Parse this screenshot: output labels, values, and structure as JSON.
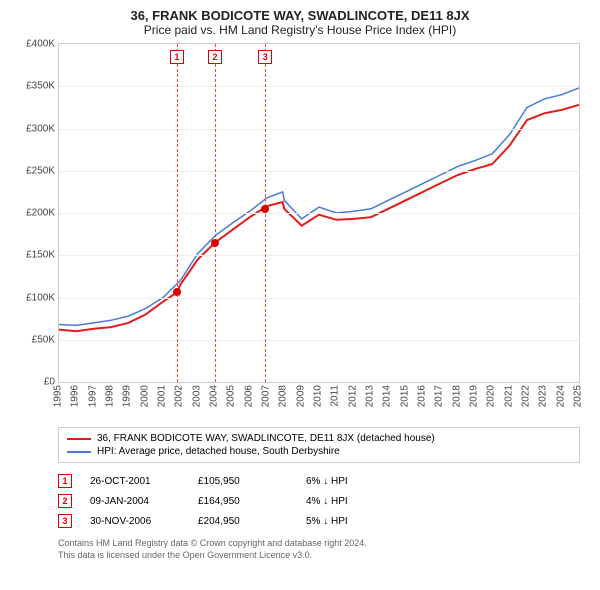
{
  "chart": {
    "type": "line",
    "title": "36, FRANK BODICOTE WAY, SWADLINCOTE, DE11 8JX",
    "subtitle": "Price paid vs. HM Land Registry's House Price Index (HPI)",
    "background_color": "#ffffff",
    "grid_color": "#eeeeee",
    "axis_color": "#cccccc",
    "y": {
      "label_prefix": "£",
      "label_suffix": "K",
      "min": 0,
      "max": 400,
      "step": 50,
      "ticks": [
        "£0",
        "£50K",
        "£100K",
        "£150K",
        "£200K",
        "£250K",
        "£300K",
        "£350K",
        "£400K"
      ]
    },
    "x": {
      "min": 1995,
      "max": 2025,
      "ticks": [
        "1995",
        "1996",
        "1997",
        "1998",
        "1999",
        "2000",
        "2001",
        "2002",
        "2003",
        "2004",
        "2005",
        "2006",
        "2007",
        "2008",
        "2009",
        "2010",
        "2011",
        "2012",
        "2013",
        "2014",
        "2015",
        "2016",
        "2017",
        "2018",
        "2019",
        "2020",
        "2021",
        "2022",
        "2023",
        "2024",
        "2025"
      ]
    },
    "series": [
      {
        "name": "property",
        "label": "36, FRANK BODICOTE WAY, SWADLINCOTE, DE11 8JX (detached house)",
        "color": "#e21b1b",
        "line_width": 2,
        "data": [
          [
            1995,
            62
          ],
          [
            1996,
            60
          ],
          [
            1997,
            63
          ],
          [
            1998,
            65
          ],
          [
            1999,
            70
          ],
          [
            2000,
            80
          ],
          [
            2001,
            95
          ],
          [
            2001.8,
            106
          ],
          [
            2002,
            115
          ],
          [
            2003,
            145
          ],
          [
            2004,
            165
          ],
          [
            2005,
            180
          ],
          [
            2006,
            195
          ],
          [
            2007,
            208
          ],
          [
            2007.9,
            213
          ],
          [
            2008,
            205
          ],
          [
            2009,
            185
          ],
          [
            2010,
            198
          ],
          [
            2011,
            192
          ],
          [
            2012,
            193
          ],
          [
            2013,
            195
          ],
          [
            2014,
            205
          ],
          [
            2015,
            215
          ],
          [
            2016,
            225
          ],
          [
            2017,
            235
          ],
          [
            2018,
            245
          ],
          [
            2019,
            252
          ],
          [
            2020,
            258
          ],
          [
            2021,
            280
          ],
          [
            2022,
            310
          ],
          [
            2023,
            318
          ],
          [
            2024,
            322
          ],
          [
            2025,
            328
          ]
        ]
      },
      {
        "name": "hpi",
        "label": "HPI: Average price, detached house, South Derbyshire",
        "color": "#4a7bd0",
        "line_width": 1.5,
        "data": [
          [
            1995,
            68
          ],
          [
            1996,
            67
          ],
          [
            1997,
            70
          ],
          [
            1998,
            73
          ],
          [
            1999,
            78
          ],
          [
            2000,
            87
          ],
          [
            2001,
            100
          ],
          [
            2002,
            120
          ],
          [
            2003,
            152
          ],
          [
            2004,
            173
          ],
          [
            2005,
            188
          ],
          [
            2006,
            202
          ],
          [
            2007,
            218
          ],
          [
            2007.9,
            225
          ],
          [
            2008,
            215
          ],
          [
            2009,
            193
          ],
          [
            2010,
            207
          ],
          [
            2011,
            200
          ],
          [
            2012,
            202
          ],
          [
            2013,
            205
          ],
          [
            2014,
            215
          ],
          [
            2015,
            225
          ],
          [
            2016,
            235
          ],
          [
            2017,
            245
          ],
          [
            2018,
            255
          ],
          [
            2019,
            262
          ],
          [
            2020,
            270
          ],
          [
            2021,
            293
          ],
          [
            2022,
            325
          ],
          [
            2023,
            335
          ],
          [
            2024,
            340
          ],
          [
            2025,
            348
          ]
        ]
      }
    ],
    "markers": [
      {
        "index": "1",
        "x": 2001.8,
        "y": 106
      },
      {
        "index": "2",
        "x": 2004.0,
        "y": 165
      },
      {
        "index": "3",
        "x": 2006.9,
        "y": 205
      }
    ],
    "marker_box_color": "#d00000",
    "vline_color": "#e74c3c"
  },
  "legend": {
    "items": [
      {
        "color": "#e21b1b",
        "label": "36, FRANK BODICOTE WAY, SWADLINCOTE, DE11 8JX (detached house)"
      },
      {
        "color": "#4a7bd0",
        "label": "HPI: Average price, detached house, South Derbyshire"
      }
    ]
  },
  "annotations": [
    {
      "index": "1",
      "date": "26-OCT-2001",
      "price": "£105,950",
      "delta": "6% ↓ HPI"
    },
    {
      "index": "2",
      "date": "09-JAN-2004",
      "price": "£164,950",
      "delta": "4% ↓ HPI"
    },
    {
      "index": "3",
      "date": "30-NOV-2006",
      "price": "£204,950",
      "delta": "5% ↓ HPI"
    }
  ],
  "footer": {
    "line1": "Contains HM Land Registry data © Crown copyright and database right 2024.",
    "line2": "This data is licensed under the Open Government Licence v3.0."
  }
}
